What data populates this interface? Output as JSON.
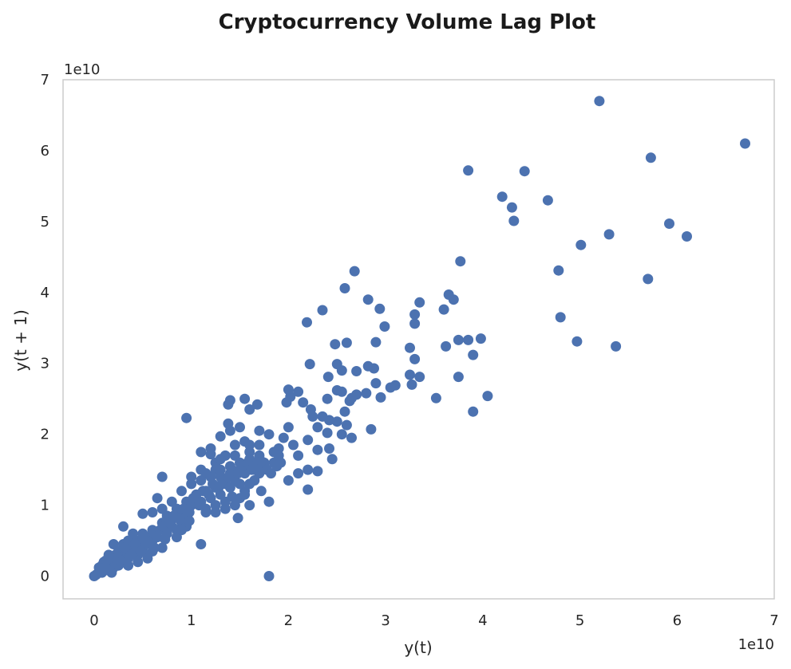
{
  "chart_data": {
    "type": "scatter",
    "title": "Cryptocurrency Volume Lag Plot",
    "xlabel": "y(t)",
    "ylabel": "y(t + 1)",
    "x_offset_label": "1e10",
    "y_offset_label": "1e10",
    "xlim": [
      -0.32,
      7.0
    ],
    "ylim": [
      -0.32,
      7.0
    ],
    "xticks": [
      0,
      1,
      2,
      3,
      4,
      5,
      6,
      7
    ],
    "yticks": [
      0,
      1,
      2,
      3,
      4,
      5,
      6,
      7
    ],
    "xtick_labels": [
      "0",
      "1",
      "2",
      "3",
      "4",
      "5",
      "6",
      "7"
    ],
    "ytick_labels": [
      "0",
      "1",
      "2",
      "3",
      "4",
      "5",
      "6",
      "7"
    ],
    "scale_note": "values in units of 1e10",
    "grid": false,
    "marker_color": "#4c72b0",
    "points": [
      [
        5.2,
        6.7
      ],
      [
        6.7,
        6.1
      ],
      [
        5.73,
        5.9
      ],
      [
        3.85,
        5.72
      ],
      [
        4.43,
        5.71
      ],
      [
        4.2,
        5.35
      ],
      [
        4.3,
        5.2
      ],
      [
        4.32,
        5.01
      ],
      [
        4.67,
        5.3
      ],
      [
        5.92,
        4.97
      ],
      [
        6.1,
        4.79
      ],
      [
        5.3,
        4.82
      ],
      [
        5.01,
        4.67
      ],
      [
        3.77,
        4.44
      ],
      [
        4.78,
        4.31
      ],
      [
        5.7,
        4.19
      ],
      [
        2.68,
        4.3
      ],
      [
        2.58,
        4.06
      ],
      [
        3.65,
        3.97
      ],
      [
        3.7,
        3.9
      ],
      [
        2.82,
        3.9
      ],
      [
        3.35,
        3.86
      ],
      [
        2.35,
        3.75
      ],
      [
        2.94,
        3.77
      ],
      [
        3.6,
        3.76
      ],
      [
        3.3,
        3.69
      ],
      [
        3.3,
        3.56
      ],
      [
        2.19,
        3.58
      ],
      [
        2.99,
        3.52
      ],
      [
        4.8,
        3.65
      ],
      [
        5.37,
        3.24
      ],
      [
        4.97,
        3.31
      ],
      [
        3.75,
        3.33
      ],
      [
        3.85,
        3.33
      ],
      [
        3.98,
        3.35
      ],
      [
        3.62,
        3.24
      ],
      [
        3.9,
        3.12
      ],
      [
        3.25,
        3.22
      ],
      [
        3.3,
        3.06
      ],
      [
        2.48,
        3.27
      ],
      [
        2.6,
        3.29
      ],
      [
        2.9,
        3.3
      ],
      [
        2.22,
        2.99
      ],
      [
        2.5,
        2.99
      ],
      [
        2.55,
        2.9
      ],
      [
        2.41,
        2.81
      ],
      [
        2.7,
        2.89
      ],
      [
        2.82,
        2.96
      ],
      [
        2.88,
        2.93
      ],
      [
        3.25,
        2.84
      ],
      [
        3.35,
        2.81
      ],
      [
        3.75,
        2.81
      ],
      [
        3.1,
        2.69
      ],
      [
        3.05,
        2.66
      ],
      [
        3.27,
        2.7
      ],
      [
        2.9,
        2.72
      ],
      [
        2.8,
        2.58
      ],
      [
        2.95,
        2.52
      ],
      [
        2.55,
        2.6
      ],
      [
        2.5,
        2.62
      ],
      [
        2.4,
        2.5
      ],
      [
        2.7,
        2.56
      ],
      [
        2.65,
        2.51
      ],
      [
        3.52,
        2.51
      ],
      [
        4.05,
        2.54
      ],
      [
        3.9,
        2.32
      ],
      [
        2.58,
        2.32
      ],
      [
        2.63,
        2.47
      ],
      [
        2.0,
        2.63
      ],
      [
        2.02,
        2.53
      ],
      [
        1.98,
        2.45
      ],
      [
        2.1,
        2.6
      ],
      [
        2.15,
        2.45
      ],
      [
        2.23,
        2.35
      ],
      [
        2.25,
        2.25
      ],
      [
        2.35,
        2.25
      ],
      [
        2.3,
        2.1
      ],
      [
        2.42,
        2.2
      ],
      [
        2.5,
        2.18
      ],
      [
        2.6,
        2.13
      ],
      [
        2.65,
        1.95
      ],
      [
        2.4,
        2.02
      ],
      [
        2.2,
        1.92
      ],
      [
        2.3,
        1.78
      ],
      [
        2.1,
        1.7
      ],
      [
        2.42,
        1.8
      ],
      [
        2.45,
        1.65
      ],
      [
        2.2,
        1.5
      ],
      [
        2.3,
        1.48
      ],
      [
        2.1,
        1.45
      ],
      [
        2.0,
        1.35
      ],
      [
        2.2,
        1.22
      ],
      [
        2.85,
        2.07
      ],
      [
        2.55,
        2.0
      ],
      [
        2.0,
        2.1
      ],
      [
        1.95,
        1.95
      ],
      [
        2.05,
        1.85
      ],
      [
        1.9,
        1.8
      ],
      [
        1.85,
        1.6
      ],
      [
        1.75,
        1.55
      ],
      [
        1.7,
        1.45
      ],
      [
        1.65,
        1.35
      ],
      [
        1.6,
        1.3
      ],
      [
        1.55,
        1.2
      ],
      [
        1.5,
        1.1
      ],
      [
        1.45,
        1.0
      ],
      [
        1.35,
        0.95
      ],
      [
        1.25,
        0.9
      ],
      [
        1.15,
        0.9
      ],
      [
        1.8,
        1.05
      ],
      [
        1.72,
        1.2
      ],
      [
        1.48,
        0.82
      ],
      [
        1.8,
        0.0
      ],
      [
        1.1,
        0.45
      ],
      [
        0.95,
        2.23
      ],
      [
        1.4,
        2.48
      ],
      [
        1.38,
        2.42
      ],
      [
        1.55,
        2.5
      ],
      [
        1.6,
        2.35
      ],
      [
        1.68,
        2.42
      ],
      [
        1.7,
        2.05
      ],
      [
        1.8,
        2.0
      ],
      [
        1.5,
        2.1
      ],
      [
        1.38,
        2.15
      ],
      [
        1.4,
        2.05
      ],
      [
        1.3,
        1.97
      ],
      [
        1.2,
        1.8
      ],
      [
        1.55,
        1.9
      ],
      [
        1.6,
        1.85
      ],
      [
        1.45,
        1.7
      ],
      [
        1.35,
        1.7
      ],
      [
        1.25,
        1.6
      ],
      [
        1.1,
        1.5
      ],
      [
        1.0,
        1.4
      ],
      [
        1.15,
        1.45
      ],
      [
        1.25,
        1.5
      ],
      [
        1.3,
        1.4
      ],
      [
        1.4,
        1.55
      ],
      [
        1.5,
        1.6
      ],
      [
        1.6,
        1.65
      ],
      [
        1.7,
        1.7
      ],
      [
        1.75,
        1.6
      ],
      [
        1.65,
        1.5
      ],
      [
        1.55,
        1.45
      ],
      [
        1.45,
        1.35
      ],
      [
        1.35,
        1.3
      ],
      [
        1.25,
        1.25
      ],
      [
        1.15,
        1.2
      ],
      [
        1.05,
        1.15
      ],
      [
        0.95,
        1.05
      ],
      [
        0.85,
        0.95
      ],
      [
        0.75,
        0.85
      ],
      [
        1.0,
        1.3
      ],
      [
        1.1,
        1.35
      ],
      [
        1.2,
        1.4
      ],
      [
        1.3,
        1.5
      ],
      [
        1.4,
        1.45
      ],
      [
        1.5,
        1.5
      ],
      [
        1.6,
        1.55
      ],
      [
        1.7,
        1.65
      ],
      [
        1.5,
        1.3
      ],
      [
        1.4,
        1.25
      ],
      [
        1.3,
        1.15
      ],
      [
        1.2,
        1.1
      ],
      [
        1.1,
        1.05
      ],
      [
        1.0,
        1.0
      ],
      [
        0.9,
        0.9
      ],
      [
        0.8,
        0.8
      ],
      [
        1.1,
        1.75
      ],
      [
        1.2,
        1.72
      ],
      [
        1.3,
        1.65
      ],
      [
        1.45,
        1.85
      ],
      [
        1.6,
        1.75
      ],
      [
        1.7,
        1.85
      ],
      [
        1.85,
        1.75
      ],
      [
        1.9,
        1.7
      ],
      [
        0.9,
        1.2
      ],
      [
        0.8,
        1.05
      ],
      [
        0.7,
        0.95
      ],
      [
        0.6,
        0.9
      ],
      [
        0.5,
        0.88
      ],
      [
        0.7,
        1.4
      ],
      [
        0.65,
        1.1
      ],
      [
        0.5,
        0.6
      ],
      [
        0.55,
        0.55
      ],
      [
        0.6,
        0.65
      ],
      [
        0.7,
        0.75
      ],
      [
        0.75,
        0.6
      ],
      [
        0.8,
        0.7
      ],
      [
        0.9,
        0.75
      ],
      [
        0.95,
        0.85
      ],
      [
        0.85,
        0.55
      ],
      [
        0.7,
        0.4
      ],
      [
        0.6,
        0.35
      ],
      [
        0.5,
        0.45
      ],
      [
        0.45,
        0.5
      ],
      [
        0.4,
        0.4
      ],
      [
        0.35,
        0.35
      ],
      [
        0.3,
        0.3
      ],
      [
        0.3,
        0.7
      ],
      [
        0.25,
        0.25
      ],
      [
        0.2,
        0.2
      ],
      [
        0.15,
        0.15
      ],
      [
        0.1,
        0.1
      ],
      [
        0.05,
        0.05
      ],
      [
        0.02,
        0.02
      ],
      [
        0.0,
        0.0
      ],
      [
        0.08,
        0.15
      ],
      [
        0.15,
        0.08
      ],
      [
        0.2,
        0.12
      ],
      [
        0.12,
        0.22
      ],
      [
        0.25,
        0.35
      ],
      [
        0.35,
        0.25
      ],
      [
        0.4,
        0.5
      ],
      [
        0.5,
        0.4
      ],
      [
        0.45,
        0.3
      ],
      [
        0.3,
        0.45
      ],
      [
        0.55,
        0.3
      ],
      [
        0.2,
        0.45
      ],
      [
        0.6,
        0.5
      ],
      [
        0.65,
        0.55
      ],
      [
        0.4,
        0.6
      ],
      [
        0.35,
        0.5
      ],
      [
        0.25,
        0.15
      ],
      [
        0.1,
        0.2
      ],
      [
        0.05,
        0.12
      ],
      [
        0.18,
        0.05
      ],
      [
        0.22,
        0.3
      ],
      [
        0.28,
        0.2
      ],
      [
        0.32,
        0.4
      ],
      [
        0.38,
        0.3
      ],
      [
        0.42,
        0.45
      ],
      [
        0.48,
        0.35
      ],
      [
        0.52,
        0.5
      ],
      [
        0.58,
        0.45
      ],
      [
        0.62,
        0.6
      ],
      [
        0.68,
        0.65
      ],
      [
        0.72,
        0.7
      ],
      [
        0.78,
        0.75
      ],
      [
        0.82,
        0.85
      ],
      [
        0.88,
        0.8
      ],
      [
        0.92,
        0.95
      ],
      [
        0.98,
        0.9
      ],
      [
        1.02,
        1.1
      ],
      [
        1.08,
        1.0
      ],
      [
        1.12,
        1.2
      ],
      [
        1.18,
        1.15
      ],
      [
        1.22,
        1.3
      ],
      [
        1.28,
        1.25
      ],
      [
        1.32,
        1.35
      ],
      [
        1.38,
        1.4
      ],
      [
        1.42,
        1.5
      ],
      [
        1.48,
        1.45
      ],
      [
        1.52,
        1.55
      ],
      [
        1.58,
        1.6
      ],
      [
        1.62,
        1.5
      ],
      [
        1.68,
        1.58
      ],
      [
        1.72,
        1.62
      ],
      [
        1.78,
        1.5
      ],
      [
        1.82,
        1.45
      ],
      [
        1.88,
        1.55
      ],
      [
        1.92,
        1.6
      ],
      [
        1.35,
        1.05
      ],
      [
        1.25,
        1.0
      ],
      [
        1.15,
        0.95
      ],
      [
        0.95,
        0.7
      ],
      [
        0.85,
        0.65
      ],
      [
        1.55,
        1.15
      ],
      [
        1.6,
        1.0
      ],
      [
        1.42,
        1.12
      ],
      [
        0.9,
        0.65
      ],
      [
        0.98,
        0.78
      ],
      [
        0.62,
        0.4
      ],
      [
        0.73,
        0.52
      ],
      [
        0.45,
        0.2
      ],
      [
        0.35,
        0.15
      ],
      [
        0.55,
        0.25
      ],
      [
        0.15,
        0.3
      ],
      [
        0.08,
        0.05
      ],
      [
        0.12,
        0.12
      ]
    ]
  }
}
